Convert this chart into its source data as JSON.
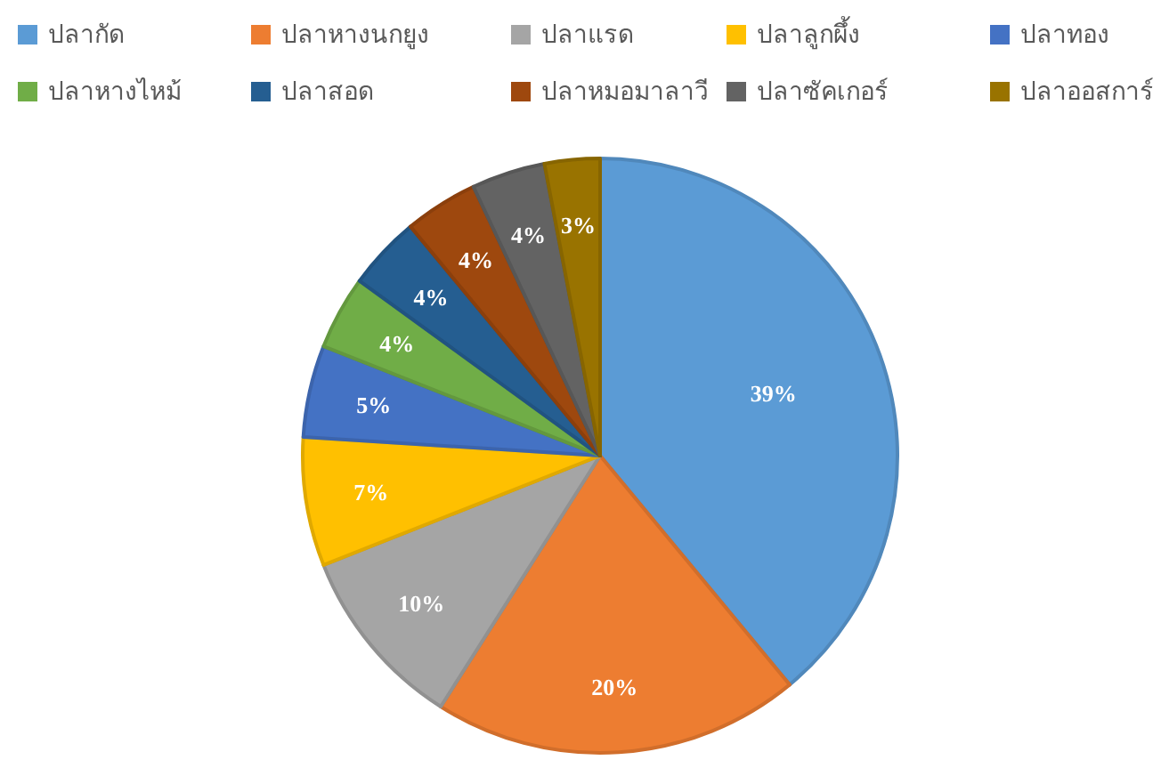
{
  "chart_data": {
    "type": "pie",
    "categories": [
      "ปลากัด",
      "ปลาหางนกยูง",
      "ปลาแรด",
      "ปลาลูกผึ้ง",
      "ปลาทอง",
      "ปลาหางไหม้",
      "ปลาสอด",
      "ปลาหมอมาลาวี",
      "ปลาซัคเกอร์",
      "ปลาออสการ์"
    ],
    "values": [
      39,
      20,
      10,
      7,
      5,
      4,
      4,
      4,
      4,
      3
    ],
    "value_labels": [
      "39%",
      "20%",
      "10%",
      "7%",
      "5%",
      "4%",
      "4%",
      "4%",
      "4%",
      "3%"
    ],
    "colors": [
      "#5b9bd5",
      "#ed7d31",
      "#a5a5a5",
      "#ffc000",
      "#4472c4",
      "#70ad47",
      "#255e91",
      "#9e480e",
      "#636363",
      "#997300"
    ],
    "legend": "top"
  }
}
